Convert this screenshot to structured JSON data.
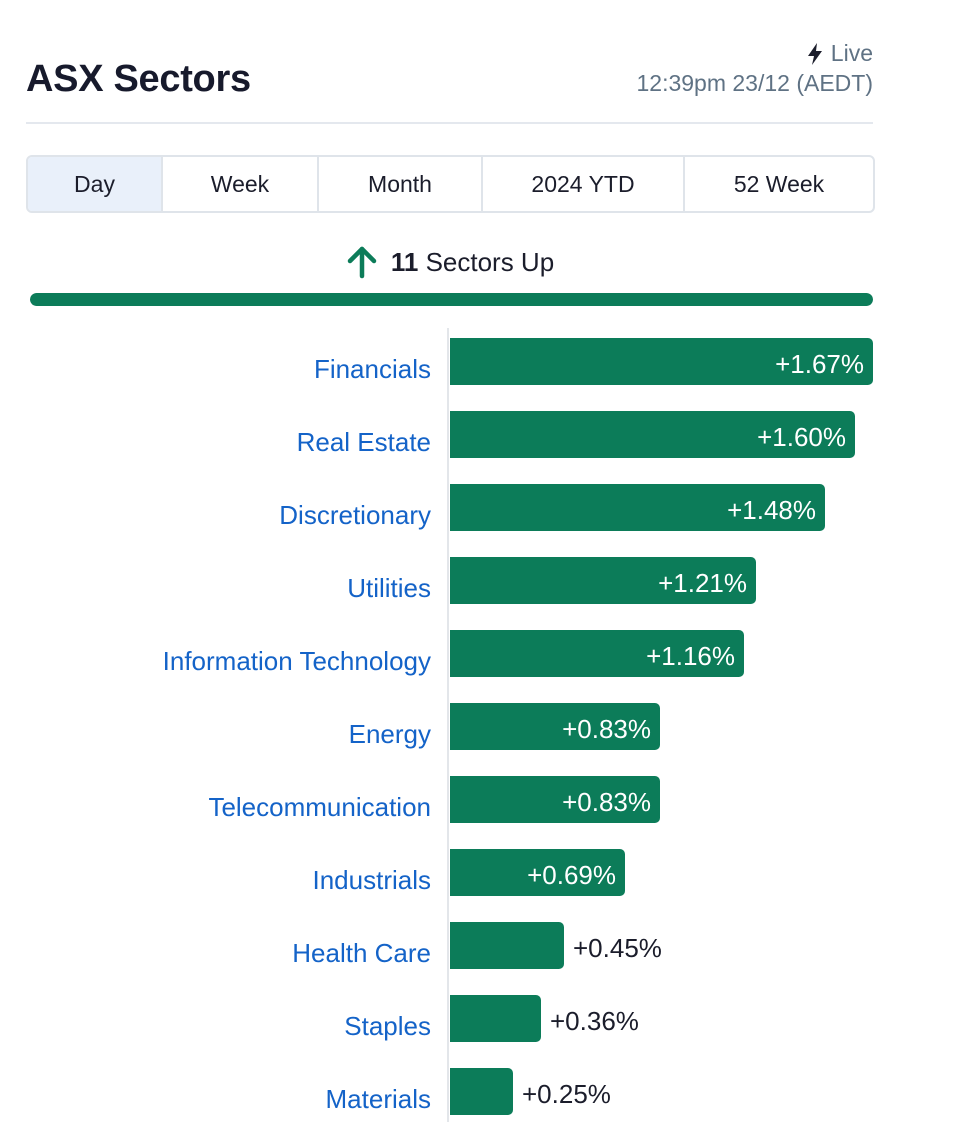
{
  "header": {
    "title": "ASX Sectors",
    "live_label": "Live",
    "timestamp": "12:39pm 23/12 (AEDT)"
  },
  "tabs": [
    {
      "label": "Day",
      "active": true
    },
    {
      "label": "Week",
      "active": false
    },
    {
      "label": "Month",
      "active": false
    },
    {
      "label": "2024 YTD",
      "active": false
    },
    {
      "label": "52 Week",
      "active": false
    }
  ],
  "summary": {
    "count": "11",
    "text": "Sectors Up",
    "sectors_up": 11,
    "sectors_total": 11
  },
  "colors": {
    "bar": "#0c7c59",
    "label": "#1463c8",
    "arrow": "#0c7c59"
  },
  "icons": {
    "live": "lightning-bolt-icon",
    "summary": "up-arrow-icon"
  },
  "chart_data": {
    "type": "bar",
    "orientation": "horizontal",
    "categories": [
      "Financials",
      "Real Estate",
      "Discretionary",
      "Utilities",
      "Information Technology",
      "Energy",
      "Telecommunication",
      "Industrials",
      "Health Care",
      "Staples",
      "Materials"
    ],
    "values": [
      1.67,
      1.6,
      1.48,
      1.21,
      1.16,
      0.83,
      0.83,
      0.69,
      0.45,
      0.36,
      0.25
    ],
    "value_labels": [
      "+1.67%",
      "+1.60%",
      "+1.48%",
      "+1.21%",
      "+1.16%",
      "+0.83%",
      "+0.83%",
      "+0.69%",
      "+0.45%",
      "+0.36%",
      "+0.25%"
    ],
    "grid": false
  }
}
